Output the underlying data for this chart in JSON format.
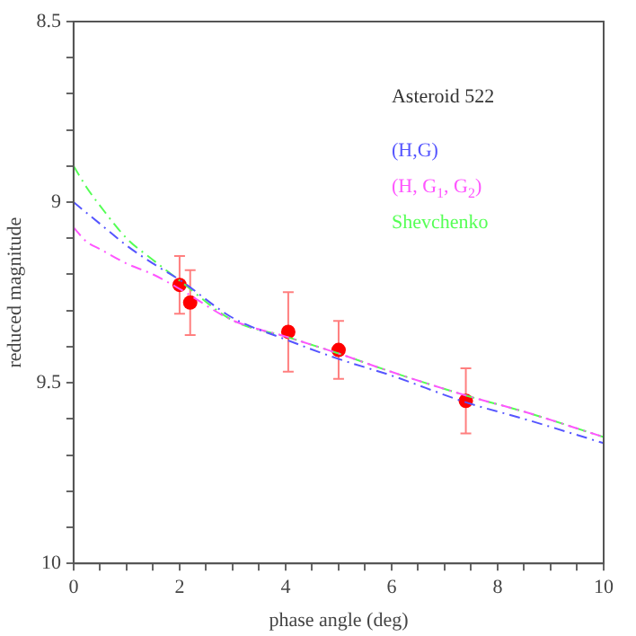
{
  "chart_data": {
    "type": "scatter",
    "xlabel": "phase angle (deg)",
    "ylabel": "reduced magnitude",
    "xlim": [
      0,
      10
    ],
    "ylim": [
      10,
      8.5
    ],
    "xticks": [
      0,
      {
        "value": 0.5,
        "label": null
      },
      {
        "value": 1,
        "label": null
      },
      {
        "value": 1.5,
        "label": null
      },
      2,
      {
        "value": 2.5,
        "label": null
      },
      {
        "value": 3,
        "label": null
      },
      {
        "value": 3.5,
        "label": null
      },
      4,
      {
        "value": 4.5,
        "label": null
      },
      {
        "value": 5,
        "label": null
      },
      {
        "value": 5.5,
        "label": null
      },
      6,
      {
        "value": 6.5,
        "label": null
      },
      {
        "value": 7,
        "label": null
      },
      {
        "value": 7.5,
        "label": null
      },
      8,
      {
        "value": 8.5,
        "label": null
      },
      {
        "value": 9,
        "label": null
      },
      {
        "value": 9.5,
        "label": null
      },
      10
    ],
    "yticks": [
      8.5,
      {
        "value": 8.6,
        "label": null
      },
      {
        "value": 8.7,
        "label": null
      },
      {
        "value": 8.8,
        "label": null
      },
      {
        "value": 8.9,
        "label": null
      },
      9,
      {
        "value": 9.1,
        "label": null
      },
      {
        "value": 9.2,
        "label": null
      },
      {
        "value": 9.3,
        "label": null
      },
      {
        "value": 9.4,
        "label": null
      },
      9.5,
      {
        "value": 9.6,
        "label": null
      },
      {
        "value": 9.7,
        "label": null
      },
      {
        "value": 9.8,
        "label": null
      },
      {
        "value": 9.9,
        "label": null
      },
      10
    ],
    "annotations": [
      "Asteroid 522"
    ],
    "legend": "top right",
    "grid": false,
    "series": [
      {
        "type": "line",
        "name": "(H,G)",
        "color": "#5555ff",
        "line_style": "dashed",
        "marker": "none",
        "x": [
          0,
          0.5,
          1,
          1.5,
          2,
          3,
          4,
          5,
          6,
          7.4,
          8.5,
          10
        ],
        "values": [
          9.0,
          9.06,
          9.12,
          9.17,
          9.215,
          9.32,
          9.38,
          9.434,
          9.48,
          9.554,
          9.6,
          9.667
        ]
      },
      {
        "type": "line",
        "name": "(H, G$_{1}$, G$_{2}$)",
        "color": "#ff55ff",
        "line_style": "dashed",
        "marker": "none",
        "x": [
          0,
          0.25,
          0.5,
          1,
          1.5,
          2,
          3,
          4,
          5,
          6,
          7.4,
          8.5,
          10
        ],
        "values": [
          9.07,
          9.11,
          9.13,
          9.17,
          9.2,
          9.24,
          9.327,
          9.372,
          9.419,
          9.47,
          9.535,
          9.58,
          9.65
        ]
      },
      {
        "type": "line",
        "name": "Shevchenko",
        "color": "#55ff55",
        "line_style": "dashed",
        "marker": "none",
        "x": [
          0,
          0.25,
          0.5,
          1,
          1.5,
          2,
          3,
          4,
          5,
          6,
          7.4,
          8.5,
          10
        ],
        "values": [
          8.9,
          8.96,
          9.01,
          9.1,
          9.16,
          9.217,
          9.327,
          9.372,
          9.419,
          9.47,
          9.535,
          9.58,
          9.65
        ]
      },
      {
        "type": "scatter",
        "color": "#ff0000",
        "marker": "circle",
        "x": [
          2.0,
          2.2,
          4.05,
          5.0,
          7.4
        ],
        "values": [
          9.229,
          9.278,
          9.359,
          9.409,
          9.55
        ],
        "errors": [
          0.08,
          0.09,
          0.11,
          0.08,
          0.09
        ]
      }
    ]
  }
}
